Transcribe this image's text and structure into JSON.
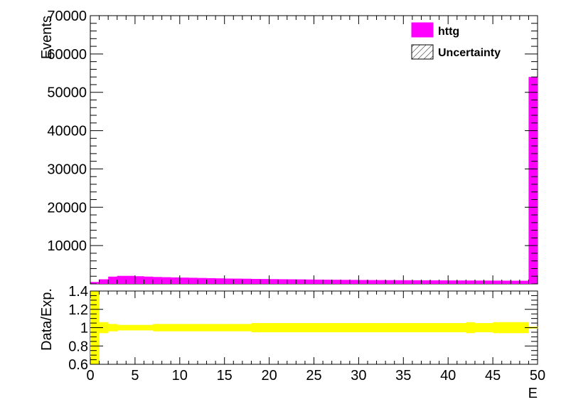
{
  "chart_data": [
    {
      "type": "bar",
      "panel": "main",
      "ylabel": "Events",
      "xlim": [
        0,
        50
      ],
      "ylim": [
        0,
        70000
      ],
      "yticks": [
        10000,
        20000,
        30000,
        40000,
        50000,
        60000,
        70000
      ],
      "ytick_labels": [
        "10000",
        "20000",
        "30000",
        "40000",
        "50000",
        "60000",
        "70000"
      ],
      "bin_width": 1,
      "series": [
        {
          "name": "httg",
          "color": "#ff00ff",
          "values": [
            500,
            1200,
            1900,
            2100,
            2100,
            2000,
            1900,
            1800,
            1750,
            1700,
            1650,
            1600,
            1550,
            1500,
            1450,
            1400,
            1380,
            1350,
            1300,
            1280,
            1250,
            1220,
            1200,
            1180,
            1150,
            1120,
            1100,
            1080,
            1060,
            1040,
            1020,
            1000,
            990,
            980,
            970,
            960,
            950,
            940,
            930,
            920,
            910,
            900,
            890,
            880,
            870,
            860,
            850,
            840,
            830,
            54000
          ]
        }
      ],
      "legend": {
        "placement": "top-right",
        "entries": [
          {
            "label": "httg",
            "style": "filled",
            "color": "#ff00ff"
          },
          {
            "label": "Uncertainty",
            "style": "hatched",
            "color": "#000000"
          }
        ]
      }
    },
    {
      "type": "area",
      "panel": "ratio",
      "xlabel": "E",
      "ylabel": "Data/Exp.",
      "xlim": [
        0,
        50
      ],
      "ylim": [
        0.6,
        1.4
      ],
      "xticks": [
        0,
        5,
        10,
        15,
        20,
        25,
        30,
        35,
        40,
        45,
        50
      ],
      "xtick_labels": [
        "0",
        "5",
        "10",
        "15",
        "20",
        "25",
        "30",
        "35",
        "40",
        "45",
        "50"
      ],
      "yticks": [
        0.6,
        0.8,
        1.0,
        1.2,
        1.4
      ],
      "ytick_labels": [
        "0.6",
        "0.8",
        "1",
        "1.2",
        "1.4"
      ],
      "band": {
        "name": "Uncertainty",
        "color": "#ffff00",
        "lower": [
          0.6,
          0.94,
          0.96,
          0.97,
          0.97,
          0.97,
          0.97,
          0.96,
          0.96,
          0.96,
          0.96,
          0.96,
          0.96,
          0.96,
          0.96,
          0.96,
          0.96,
          0.96,
          0.95,
          0.95,
          0.95,
          0.95,
          0.95,
          0.95,
          0.95,
          0.95,
          0.95,
          0.95,
          0.95,
          0.95,
          0.95,
          0.95,
          0.95,
          0.95,
          0.95,
          0.95,
          0.95,
          0.95,
          0.95,
          0.95,
          0.95,
          0.95,
          0.94,
          0.95,
          0.95,
          0.94,
          0.94,
          0.94,
          0.94,
          0.99
        ],
        "upper": [
          1.4,
          1.06,
          1.04,
          1.03,
          1.03,
          1.03,
          1.03,
          1.04,
          1.04,
          1.04,
          1.04,
          1.04,
          1.04,
          1.04,
          1.04,
          1.04,
          1.04,
          1.04,
          1.05,
          1.05,
          1.05,
          1.05,
          1.05,
          1.05,
          1.05,
          1.05,
          1.05,
          1.05,
          1.05,
          1.05,
          1.05,
          1.05,
          1.05,
          1.05,
          1.05,
          1.05,
          1.05,
          1.05,
          1.05,
          1.05,
          1.05,
          1.05,
          1.06,
          1.05,
          1.05,
          1.06,
          1.06,
          1.06,
          1.06,
          1.01
        ]
      }
    }
  ]
}
